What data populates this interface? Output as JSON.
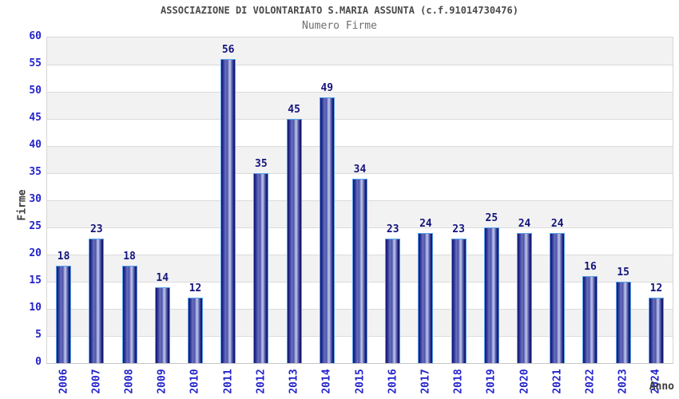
{
  "header": {
    "title": "ASSOCIAZIONE DI VOLONTARIATO S.MARIA ASSUNTA (c.f.91014730476)",
    "subtitle": "Numero Firme"
  },
  "chart_data": {
    "type": "bar",
    "title": "ASSOCIAZIONE DI VOLONTARIATO S.MARIA ASSUNTA (c.f.91014730476)",
    "subtitle": "Numero Firme",
    "categories": [
      "2006",
      "2007",
      "2008",
      "2009",
      "2010",
      "2011",
      "2012",
      "2013",
      "2014",
      "2015",
      "2016",
      "2017",
      "2018",
      "2019",
      "2020",
      "2021",
      "2022",
      "2023",
      "2024"
    ],
    "values": [
      18,
      23,
      18,
      14,
      12,
      56,
      35,
      45,
      49,
      34,
      23,
      24,
      23,
      25,
      24,
      24,
      16,
      15,
      12
    ],
    "xlabel": "Anno",
    "ylabel": "Firme",
    "ylim": [
      0,
      60
    ],
    "ytick_step": 5,
    "grid": "horizontal",
    "legend": "none",
    "colors": {
      "bar_fill": "#2b2f96",
      "bar_highlight": "#c2c8e8",
      "bar_border": "#58a2e8",
      "value_label": "#14147d",
      "tick_label": "#2323cc",
      "axis_label": "#3c3c3c",
      "band_gray": "#f2f2f2",
      "band_white": "#ffffff",
      "gridline": "#dadada"
    }
  }
}
